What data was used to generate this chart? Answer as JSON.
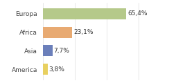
{
  "categories": [
    "Europa",
    "Africa",
    "Asia",
    "America"
  ],
  "values": [
    65.4,
    23.1,
    7.7,
    3.8
  ],
  "labels": [
    "65,4%",
    "23,1%",
    "7,7%",
    "3,8%"
  ],
  "bar_colors": [
    "#b5c98a",
    "#e8aa72",
    "#6b7fba",
    "#e8d060"
  ],
  "background_color": "#ffffff",
  "xlim": [
    0,
    100
  ],
  "bar_height": 0.6,
  "label_fontsize": 6.5,
  "cat_fontsize": 6.5
}
